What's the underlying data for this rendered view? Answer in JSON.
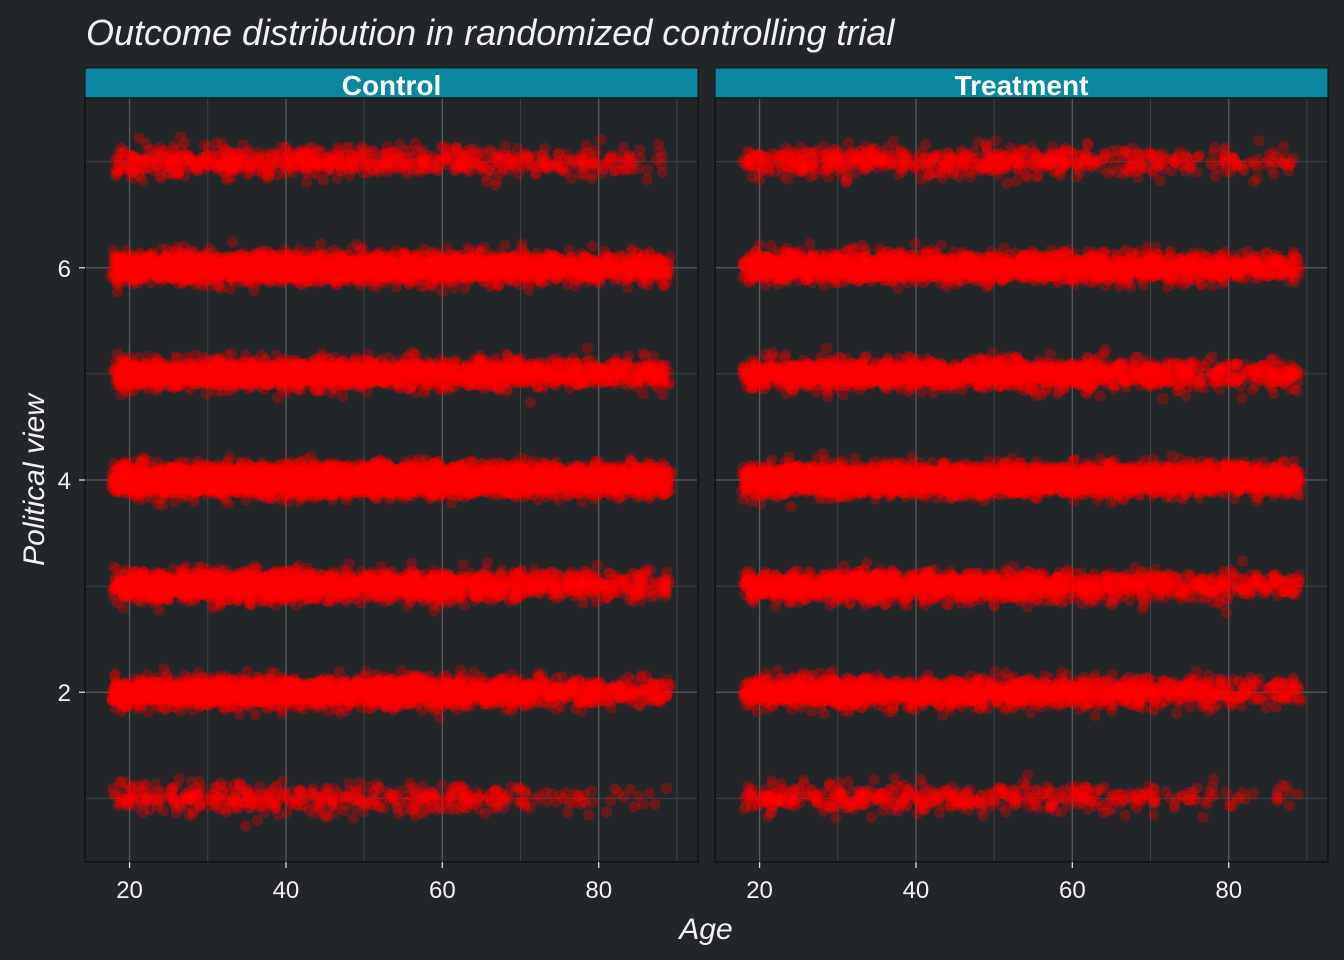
{
  "chart_data": {
    "type": "scatter",
    "title": "Outcome distribution in randomized controlling trial",
    "xlabel": "Age",
    "ylabel": "Political view",
    "xlim": [
      14.3,
      92.7
    ],
    "ylim": [
      0.4,
      7.6
    ],
    "x_ticks": [
      20,
      40,
      60,
      80
    ],
    "y_ticks": [
      2,
      4,
      6
    ],
    "grid": true,
    "point_color": "#ff0000",
    "point_opacity": 0.3,
    "jitter": 0.15,
    "age_range": [
      18,
      89
    ],
    "facets": [
      {
        "label": "Control",
        "levels": [
          {
            "y": 1,
            "n": 500,
            "age_profile": [
              1,
              1,
              0.9,
              0.9,
              0.8,
              0.7,
              0.3,
              0.1
            ]
          },
          {
            "y": 2,
            "n": 2600,
            "age_profile": [
              1,
              1,
              1,
              1,
              0.9,
              0.7,
              0.5,
              0.3
            ]
          },
          {
            "y": 3,
            "n": 2200,
            "age_profile": [
              1,
              1,
              1,
              0.9,
              0.8,
              0.6,
              0.5,
              0.3
            ]
          },
          {
            "y": 4,
            "n": 5200,
            "age_profile": [
              1,
              1,
              1,
              1,
              1,
              0.9,
              0.8,
              0.7
            ]
          },
          {
            "y": 5,
            "n": 2300,
            "age_profile": [
              1,
              1,
              1,
              0.9,
              0.8,
              0.7,
              0.6,
              0.5
            ]
          },
          {
            "y": 6,
            "n": 3000,
            "age_profile": [
              1,
              1,
              1,
              1,
              0.9,
              0.8,
              0.7,
              0.5
            ]
          },
          {
            "y": 7,
            "n": 800,
            "age_profile": [
              0.9,
              1,
              1,
              1,
              0.8,
              0.6,
              0.5,
              0.3
            ]
          }
        ]
      },
      {
        "label": "Treatment",
        "levels": [
          {
            "y": 1,
            "n": 500,
            "age_profile": [
              1,
              1,
              0.9,
              0.8,
              0.7,
              0.5,
              0.3,
              0.2
            ]
          },
          {
            "y": 2,
            "n": 1800,
            "age_profile": [
              1,
              1,
              1,
              0.9,
              0.8,
              0.6,
              0.5,
              0.3
            ]
          },
          {
            "y": 3,
            "n": 1700,
            "age_profile": [
              1,
              1,
              1,
              0.9,
              0.8,
              0.6,
              0.5,
              0.3
            ]
          },
          {
            "y": 4,
            "n": 4200,
            "age_profile": [
              1,
              1,
              1,
              1,
              1,
              0.9,
              0.8,
              0.7
            ]
          },
          {
            "y": 5,
            "n": 1800,
            "age_profile": [
              1,
              1,
              1,
              0.9,
              0.8,
              0.6,
              0.5,
              0.4
            ]
          },
          {
            "y": 6,
            "n": 2400,
            "age_profile": [
              1,
              1,
              1,
              1,
              0.9,
              0.8,
              0.7,
              0.5
            ]
          },
          {
            "y": 7,
            "n": 700,
            "age_profile": [
              0.9,
              1,
              1,
              1,
              0.8,
              0.6,
              0.5,
              0.3
            ]
          }
        ]
      }
    ]
  }
}
